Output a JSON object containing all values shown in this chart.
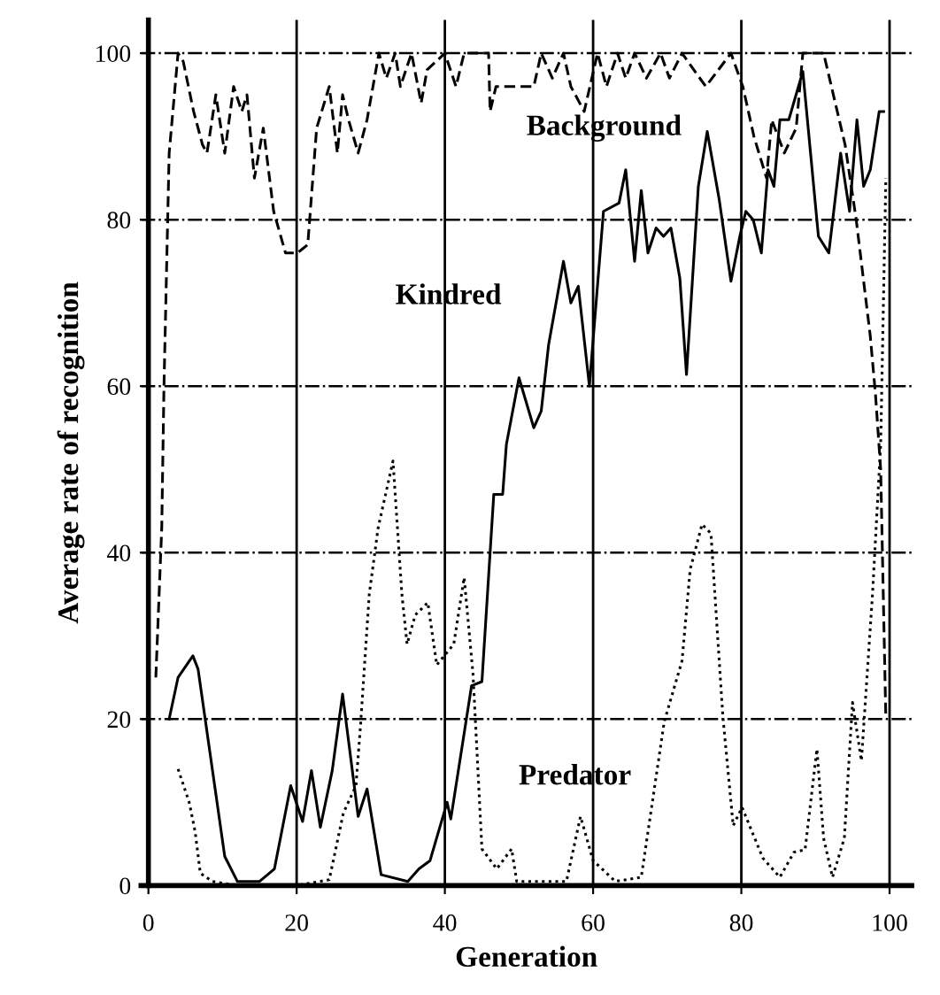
{
  "chart_data": {
    "type": "line",
    "xlabel": "Generation",
    "ylabel": "Average rate of recognition",
    "xlim": [
      -1,
      103
    ],
    "ylim": [
      0,
      104
    ],
    "xticks": [
      0,
      20,
      40,
      60,
      80,
      100
    ],
    "yticks": [
      0,
      20,
      40,
      60,
      80,
      100
    ],
    "grid": true,
    "legend": false,
    "marker": "none",
    "series": [
      {
        "name": "Background",
        "color": "#000000",
        "line_style": "dashed",
        "x": [
          1,
          1.8,
          2.1,
          2.8,
          4,
          4.7,
          6.1,
          7.3,
          7.9,
          9.1,
          10.3,
          11.5,
          12.6,
          13.3,
          14.3,
          15.5,
          16.9,
          18.5,
          20.1,
          21.5,
          22.7,
          24.4,
          25.5,
          26.2,
          27,
          28.3,
          29.5,
          31.1,
          32.1,
          33.3,
          34,
          35.5,
          36.8,
          37.6,
          40,
          41.5,
          42.6,
          45.9,
          46.1,
          46.9,
          49.5,
          52,
          53,
          54.5,
          56,
          57,
          58.8,
          60.6,
          61.8,
          63.3,
          64.4,
          65.6,
          67.2,
          69.1,
          70.3,
          72,
          75.2,
          78.6,
          80.2,
          81.7,
          83.4,
          84.1,
          85.8,
          87.4,
          88.3,
          91.1,
          94,
          95.5,
          97.4,
          98.1,
          98.8,
          99.5
        ],
        "values": [
          25,
          43,
          60,
          88,
          100,
          99,
          93,
          89,
          88,
          95,
          88,
          96,
          93,
          95,
          85,
          91,
          81,
          76,
          76,
          77,
          91,
          96,
          88,
          95,
          92,
          88,
          92,
          100,
          97,
          100,
          96,
          100,
          94,
          98,
          100,
          96,
          100,
          100,
          93,
          96,
          96,
          96,
          100,
          97,
          100,
          96,
          93,
          100,
          96,
          100,
          97,
          100,
          97,
          100,
          97,
          100,
          96,
          100,
          96,
          90,
          85,
          92,
          88,
          91,
          100,
          100,
          89,
          80,
          66,
          59,
          50,
          20
        ]
      },
      {
        "name": "Kindred",
        "color": "#000000",
        "line_style": "solid",
        "x": [
          2.8,
          4,
          6,
          6.7,
          10.3,
          12,
          15,
          17,
          19.2,
          20.8,
          22,
          23.2,
          24.8,
          26.2,
          28.3,
          29.5,
          31.4,
          35,
          36.5,
          38,
          40.3,
          40.8,
          43.6,
          45,
          46.6,
          47.8,
          48.3,
          50,
          52,
          53,
          54,
          56,
          57,
          58,
          59.5,
          61.4,
          63.5,
          64.4,
          65.6,
          66.5,
          67.4,
          68.5,
          69.5,
          70.5,
          71.7,
          72.6,
          74.2,
          75.4,
          77,
          78.6,
          79.8,
          80.6,
          81.6,
          82.7,
          83.6,
          84.4,
          85.2,
          86.4,
          88.3,
          90.4,
          91.8,
          93.4,
          94.6,
          95.6,
          96.5,
          97.4,
          98.6,
          99.2
        ],
        "values": [
          20,
          25,
          27.6,
          26,
          3.5,
          0.5,
          0.5,
          2,
          12,
          7.7,
          13.8,
          7,
          13.8,
          23,
          8.3,
          11.6,
          1.3,
          0.5,
          2,
          3,
          10,
          8,
          24,
          24.5,
          47,
          47,
          53,
          61,
          55,
          57,
          65,
          75,
          70,
          72,
          60,
          81,
          82,
          86,
          75,
          83.5,
          76,
          79,
          78,
          79,
          73,
          61.4,
          84,
          90.6,
          82.5,
          72.6,
          78,
          81,
          80,
          76,
          86,
          84,
          92,
          92,
          97.8,
          78,
          76,
          88,
          81,
          92,
          84,
          86,
          93,
          93
        ]
      },
      {
        "name": "Predator",
        "color": "#000000",
        "line_style": "dotted",
        "x": [
          4,
          5.5,
          6.3,
          7,
          8.6,
          12,
          16,
          20,
          24.4,
          26.3,
          28,
          28.6,
          29.8,
          31,
          33,
          34.2,
          34.9,
          36,
          37.7,
          38.9,
          41.2,
          42.6,
          43.8,
          45,
          47,
          49,
          49.7,
          53.6,
          56.4,
          58.3,
          60,
          63,
          66.5,
          69.6,
          72,
          73.1,
          74.7,
          75.9,
          77.5,
          78.9,
          80.1,
          82.9,
          85.2,
          87.1,
          88.6,
          90.2,
          91.1,
          92.3,
          93.9,
          95,
          96.2,
          97.7,
          98.8,
          99.5
        ],
        "values": [
          14,
          10,
          6.5,
          1.5,
          0.5,
          0,
          0,
          0,
          0.7,
          8.7,
          12,
          19,
          35,
          43,
          51,
          35,
          29,
          32.5,
          34,
          26.5,
          29,
          37,
          25.4,
          4.4,
          2,
          4.4,
          0.5,
          0.5,
          0.5,
          8.3,
          3,
          0.5,
          1,
          19.7,
          27,
          38,
          43.4,
          42.3,
          20.4,
          7.2,
          9.4,
          3.3,
          1,
          4,
          4.3,
          16.4,
          5.7,
          1,
          5.7,
          22,
          15,
          35,
          53,
          85
        ]
      }
    ]
  }
}
